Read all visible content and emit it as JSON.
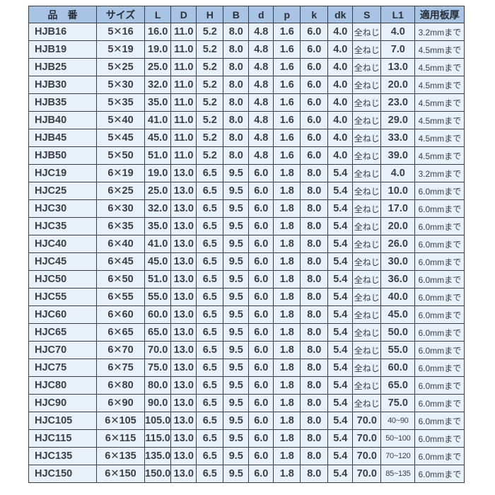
{
  "table": {
    "headers": [
      "品　番",
      "サイズ",
      "L",
      "D",
      "H",
      "B",
      "d",
      "p",
      "k",
      "dk",
      "S",
      "L1",
      "適用板厚"
    ],
    "rows": [
      [
        "HJB16",
        "5✕16",
        "16.0",
        "11.0",
        "5.2",
        "8.0",
        "4.8",
        "1.6",
        "6.0",
        "4.0",
        "全ねじ",
        "4.0",
        "3.2mmまで"
      ],
      [
        "HJB19",
        "5✕19",
        "19.0",
        "11.0",
        "5.2",
        "8.0",
        "4.8",
        "1.6",
        "6.0",
        "4.0",
        "全ねじ",
        "7.0",
        "4.5mmまで"
      ],
      [
        "HJB25",
        "5✕25",
        "25.0",
        "11.0",
        "5.2",
        "8.0",
        "4.8",
        "1.6",
        "6.0",
        "4.0",
        "全ねじ",
        "13.0",
        "4.5mmまで"
      ],
      [
        "HJB30",
        "5✕30",
        "32.0",
        "11.0",
        "5.2",
        "8.0",
        "4.8",
        "1.6",
        "6.0",
        "4.0",
        "全ねじ",
        "20.0",
        "4.5mmまで"
      ],
      [
        "HJB35",
        "5✕35",
        "35.0",
        "11.0",
        "5.2",
        "8.0",
        "4.8",
        "1.6",
        "6.0",
        "4.0",
        "全ねじ",
        "23.0",
        "4.5mmまで"
      ],
      [
        "HJB40",
        "5✕40",
        "41.0",
        "11.0",
        "5.2",
        "8.0",
        "4.8",
        "1.6",
        "6.0",
        "4.0",
        "全ねじ",
        "29.0",
        "4.5mmまで"
      ],
      [
        "HJB45",
        "5✕45",
        "45.0",
        "11.0",
        "5.2",
        "8.0",
        "4.8",
        "1.6",
        "6.0",
        "4.0",
        "全ねじ",
        "33.0",
        "4.5mmまで"
      ],
      [
        "HJB50",
        "5✕50",
        "51.0",
        "11.0",
        "5.2",
        "8.0",
        "4.8",
        "1.6",
        "6.0",
        "4.0",
        "全ねじ",
        "39.0",
        "4.5mmまで"
      ],
      [
        "HJC19",
        "6✕19",
        "19.0",
        "13.0",
        "6.5",
        "9.5",
        "6.0",
        "1.8",
        "8.0",
        "5.4",
        "全ねじ",
        "4.0",
        "3.2mmまで"
      ],
      [
        "HJC25",
        "6✕25",
        "25.0",
        "13.0",
        "6.5",
        "9.5",
        "6.0",
        "1.8",
        "8.0",
        "5.4",
        "全ねじ",
        "10.0",
        "6.0mmまで"
      ],
      [
        "HJC30",
        "6✕30",
        "32.0",
        "13.0",
        "6.5",
        "9.5",
        "6.0",
        "1.8",
        "8.0",
        "5.4",
        "全ねじ",
        "17.0",
        "6.0mmまで"
      ],
      [
        "HJC35",
        "6✕35",
        "35.0",
        "13.0",
        "6.5",
        "9.5",
        "6.0",
        "1.8",
        "8.0",
        "5.4",
        "全ねじ",
        "20.0",
        "6.0mmまで"
      ],
      [
        "HJC40",
        "6✕40",
        "41.0",
        "13.0",
        "6.5",
        "9.5",
        "6.0",
        "1.8",
        "8.0",
        "5.4",
        "全ねじ",
        "26.0",
        "6.0mmまで"
      ],
      [
        "HJC45",
        "6✕45",
        "45.0",
        "13.0",
        "6.5",
        "9.5",
        "6.0",
        "1.8",
        "8.0",
        "5.4",
        "全ねじ",
        "30.0",
        "6.0mmまで"
      ],
      [
        "HJC50",
        "6✕50",
        "51.0",
        "13.0",
        "6.5",
        "9.5",
        "6.0",
        "1.8",
        "8.0",
        "5.4",
        "全ねじ",
        "36.0",
        "6.0mmまで"
      ],
      [
        "HJC55",
        "6✕55",
        "55.0",
        "13.0",
        "6.5",
        "9.5",
        "6.0",
        "1.8",
        "8.0",
        "5.4",
        "全ねじ",
        "40.0",
        "6.0mmまで"
      ],
      [
        "HJC60",
        "6✕60",
        "60.0",
        "13.0",
        "6.5",
        "9.5",
        "6.0",
        "1.8",
        "8.0",
        "5.4",
        "全ねじ",
        "45.0",
        "6.0mmまで"
      ],
      [
        "HJC65",
        "6✕65",
        "65.0",
        "13.0",
        "6.5",
        "9.5",
        "6.0",
        "1.8",
        "8.0",
        "5.4",
        "全ねじ",
        "50.0",
        "6.0mmまで"
      ],
      [
        "HJC70",
        "6✕70",
        "70.0",
        "13.0",
        "6.5",
        "9.5",
        "6.0",
        "1.8",
        "8.0",
        "5.4",
        "全ねじ",
        "55.0",
        "6.0mmまで"
      ],
      [
        "HJC75",
        "6✕75",
        "75.0",
        "13.0",
        "6.5",
        "9.5",
        "6.0",
        "1.8",
        "8.0",
        "5.4",
        "全ねじ",
        "60.0",
        "6.0mmまで"
      ],
      [
        "HJC80",
        "6✕80",
        "80.0",
        "13.0",
        "6.5",
        "9.5",
        "6.0",
        "1.8",
        "8.0",
        "5.4",
        "全ねじ",
        "65.0",
        "6.0mmまで"
      ],
      [
        "HJC90",
        "6✕90",
        "90.0",
        "13.0",
        "6.5",
        "9.5",
        "6.0",
        "1.8",
        "8.0",
        "5.4",
        "全ねじ",
        "75.0",
        "6.0mmまで"
      ],
      [
        "HJC105",
        "6✕105",
        "105.0",
        "13.0",
        "6.5",
        "9.5",
        "6.0",
        "1.8",
        "8.0",
        "5.4",
        "70.0",
        "40~90",
        "6.0mmまで"
      ],
      [
        "HJC115",
        "6✕115",
        "115.0",
        "13.0",
        "6.5",
        "9.5",
        "6.0",
        "1.8",
        "8.0",
        "5.4",
        "70.0",
        "50~100",
        "6.0mmまで"
      ],
      [
        "HJC135",
        "6✕135",
        "135.0",
        "13.0",
        "6.5",
        "9.5",
        "6.0",
        "1.8",
        "8.0",
        "5.4",
        "70.0",
        "70~120",
        "6.0mmまで"
      ],
      [
        "HJC150",
        "6✕150",
        "150.0",
        "13.0",
        "6.5",
        "9.5",
        "6.0",
        "1.8",
        "8.0",
        "5.4",
        "70.0",
        "85~135",
        "6.0mmまで"
      ]
    ]
  },
  "colors": {
    "header_bg": "#a7c4e4",
    "row_bg": "#e8f0f8",
    "border": "#3a3f47"
  }
}
